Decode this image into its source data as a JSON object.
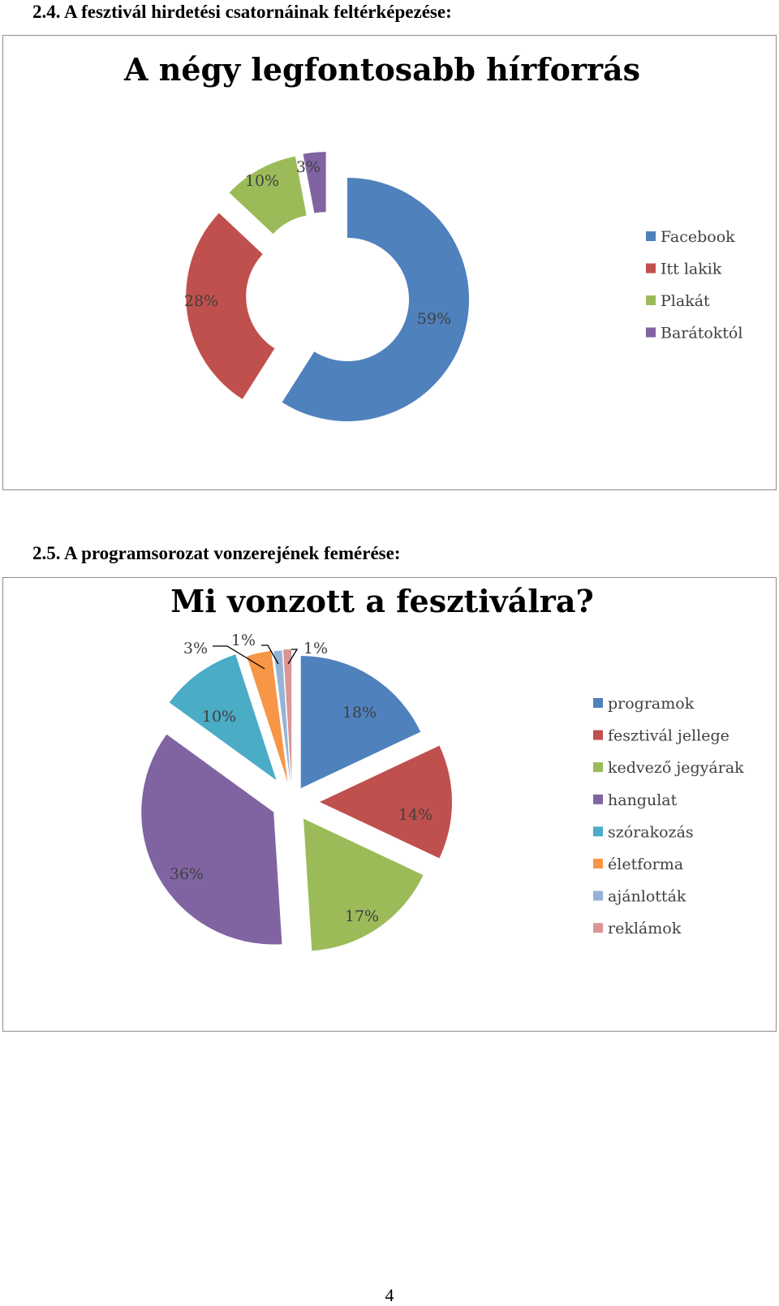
{
  "headings": {
    "section1": "2.4. A fesztivál hirdetési csatornáinak feltérképezése:",
    "section2": "2.5. A programsorozat vonzerejének femérése:"
  },
  "page_number": "4",
  "chart_data": [
    {
      "type": "pie",
      "subtype": "exploded-doughnut",
      "title": "A négy legfontosabb hírforrás",
      "legend_position": "right",
      "categories": [
        "Facebook",
        "Itt lakik",
        "Plakát",
        "Barátoktól"
      ],
      "values": [
        59,
        28,
        10,
        3
      ],
      "labels": [
        "59%",
        "28%",
        "10%",
        "3%"
      ],
      "colors": [
        "#4F81BD",
        "#C0504D",
        "#9BBB59",
        "#8064A2"
      ]
    },
    {
      "type": "pie",
      "subtype": "exploded-pie",
      "title": "Mi vonzott a fesztiválra?",
      "legend_position": "right",
      "categories": [
        "programok",
        "fesztivál jellege",
        "kedvező jegyárak",
        "hangulat",
        "szórakozás",
        "életforma",
        "ajánlották",
        "reklámok"
      ],
      "values": [
        18,
        14,
        17,
        36,
        10,
        3,
        1,
        1
      ],
      "labels": [
        "18%",
        "14%",
        "17%",
        "36%",
        "10%",
        "3%",
        "1%",
        "1%"
      ],
      "colors": [
        "#4F81BD",
        "#C0504D",
        "#9BBB59",
        "#8064A2",
        "#4BACC6",
        "#F79646",
        "#95B3D7",
        "#D99694"
      ]
    }
  ]
}
